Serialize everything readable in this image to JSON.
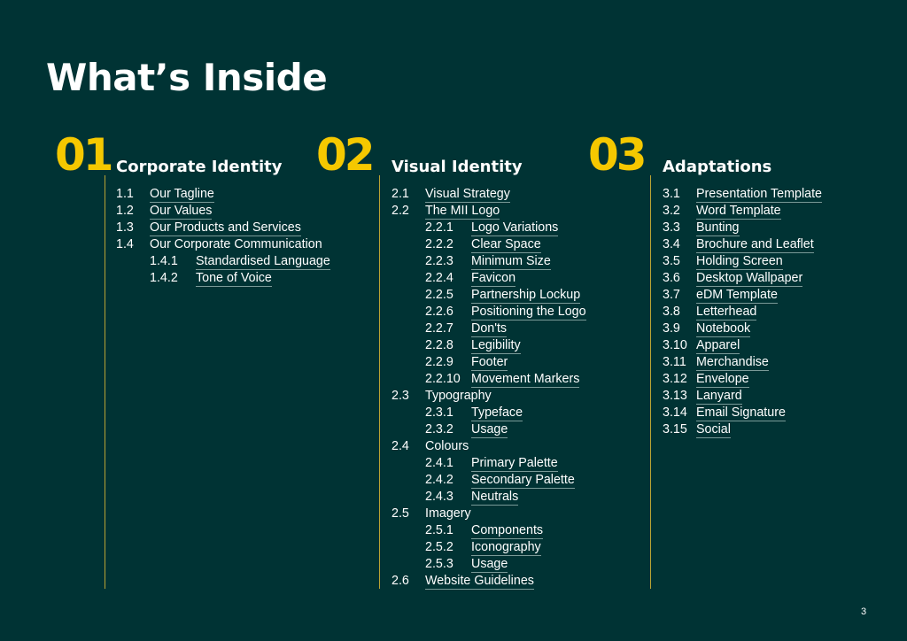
{
  "title": "What’s Inside",
  "page_number": "3",
  "colors": {
    "background": "#003334",
    "accent": "#f5c800",
    "divider": "#b9a434"
  },
  "sections": [
    {
      "number": "01",
      "heading": "Corporate Identity",
      "items": [
        {
          "num": "1.1",
          "text": "Our Tagline",
          "level": 1,
          "link": true
        },
        {
          "num": "1.2",
          "text": "Our Values",
          "level": 1,
          "link": true
        },
        {
          "num": "1.3",
          "text": "Our Products and Services",
          "level": 1,
          "link": true
        },
        {
          "num": "1.4",
          "text": "Our Corporate Communication",
          "level": 1,
          "link": false
        },
        {
          "num": "1.4.1",
          "text": "Standardised Language",
          "level": 2,
          "link": true
        },
        {
          "num": "1.4.2",
          "text": "Tone of Voice",
          "level": 2,
          "link": true
        }
      ]
    },
    {
      "number": "02",
      "heading": "Visual Identity",
      "items": [
        {
          "num": "2.1",
          "text": "Visual Strategy",
          "level": 1,
          "link": true
        },
        {
          "num": "2.2",
          "text": "The MII Logo",
          "level": 1,
          "link": true
        },
        {
          "num": "2.2.1",
          "text": "Logo Variations",
          "level": 2,
          "link": true
        },
        {
          "num": "2.2.2",
          "text": "Clear Space",
          "level": 2,
          "link": true
        },
        {
          "num": "2.2.3",
          "text": "Minimum Size",
          "level": 2,
          "link": true
        },
        {
          "num": "2.2.4",
          "text": "Favicon",
          "level": 2,
          "link": true
        },
        {
          "num": "2.2.5",
          "text": "Partnership Lockup",
          "level": 2,
          "link": true
        },
        {
          "num": "2.2.6",
          "text": "Positioning the Logo",
          "level": 2,
          "link": true
        },
        {
          "num": "2.2.7",
          "text": "Don'ts",
          "level": 2,
          "link": true
        },
        {
          "num": "2.2.8",
          "text": "Legibility",
          "level": 2,
          "link": true
        },
        {
          "num": "2.2.9",
          "text": "Footer",
          "level": 2,
          "link": true
        },
        {
          "num": "2.2.10",
          "text": "Movement Markers",
          "level": 2,
          "link": true
        },
        {
          "num": "2.3",
          "text": "Typography",
          "level": 1,
          "link": false
        },
        {
          "num": "2.3.1",
          "text": "Typeface",
          "level": 2,
          "link": true
        },
        {
          "num": "2.3.2",
          "text": "Usage",
          "level": 2,
          "link": true
        },
        {
          "num": "2.4",
          "text": "Colours",
          "level": 1,
          "link": false
        },
        {
          "num": "2.4.1",
          "text": "Primary Palette",
          "level": 2,
          "link": true
        },
        {
          "num": "2.4.2",
          "text": "Secondary Palette",
          "level": 2,
          "link": true
        },
        {
          "num": "2.4.3",
          "text": "Neutrals",
          "level": 2,
          "link": true
        },
        {
          "num": "2.5",
          "text": "Imagery",
          "level": 1,
          "link": false
        },
        {
          "num": "2.5.1",
          "text": "Components",
          "level": 2,
          "link": true
        },
        {
          "num": "2.5.2",
          "text": "Iconography",
          "level": 2,
          "link": true
        },
        {
          "num": "2.5.3",
          "text": "Usage",
          "level": 2,
          "link": true
        },
        {
          "num": "2.6",
          "text": "Website Guidelines",
          "level": 1,
          "link": true
        }
      ]
    },
    {
      "number": "03",
      "heading": "Adaptations",
      "items": [
        {
          "num": "3.1",
          "text": "Presentation Template",
          "level": 1,
          "link": true
        },
        {
          "num": "3.2",
          "text": "Word Template",
          "level": 1,
          "link": true
        },
        {
          "num": "3.3",
          "text": "Bunting",
          "level": 1,
          "link": true
        },
        {
          "num": "3.4",
          "text": "Brochure and Leaflet",
          "level": 1,
          "link": true
        },
        {
          "num": "3.5",
          "text": "Holding Screen",
          "level": 1,
          "link": true
        },
        {
          "num": "3.6",
          "text": "Desktop Wallpaper",
          "level": 1,
          "link": true
        },
        {
          "num": "3.7",
          "text": "eDM Template",
          "level": 1,
          "link": true
        },
        {
          "num": "3.8",
          "text": "Letterhead",
          "level": 1,
          "link": true
        },
        {
          "num": "3.9",
          "text": "Notebook",
          "level": 1,
          "link": true
        },
        {
          "num": "3.10",
          "text": "Apparel",
          "level": 1,
          "link": true
        },
        {
          "num": "3.11",
          "text": "Merchandise",
          "level": 1,
          "link": true
        },
        {
          "num": "3.12",
          "text": "Envelope",
          "level": 1,
          "link": true
        },
        {
          "num": "3.13",
          "text": "Lanyard",
          "level": 1,
          "link": true
        },
        {
          "num": "3.14",
          "text": "Email Signature",
          "level": 1,
          "link": true
        },
        {
          "num": "3.15",
          "text": "Social",
          "level": 1,
          "link": true
        }
      ]
    }
  ]
}
